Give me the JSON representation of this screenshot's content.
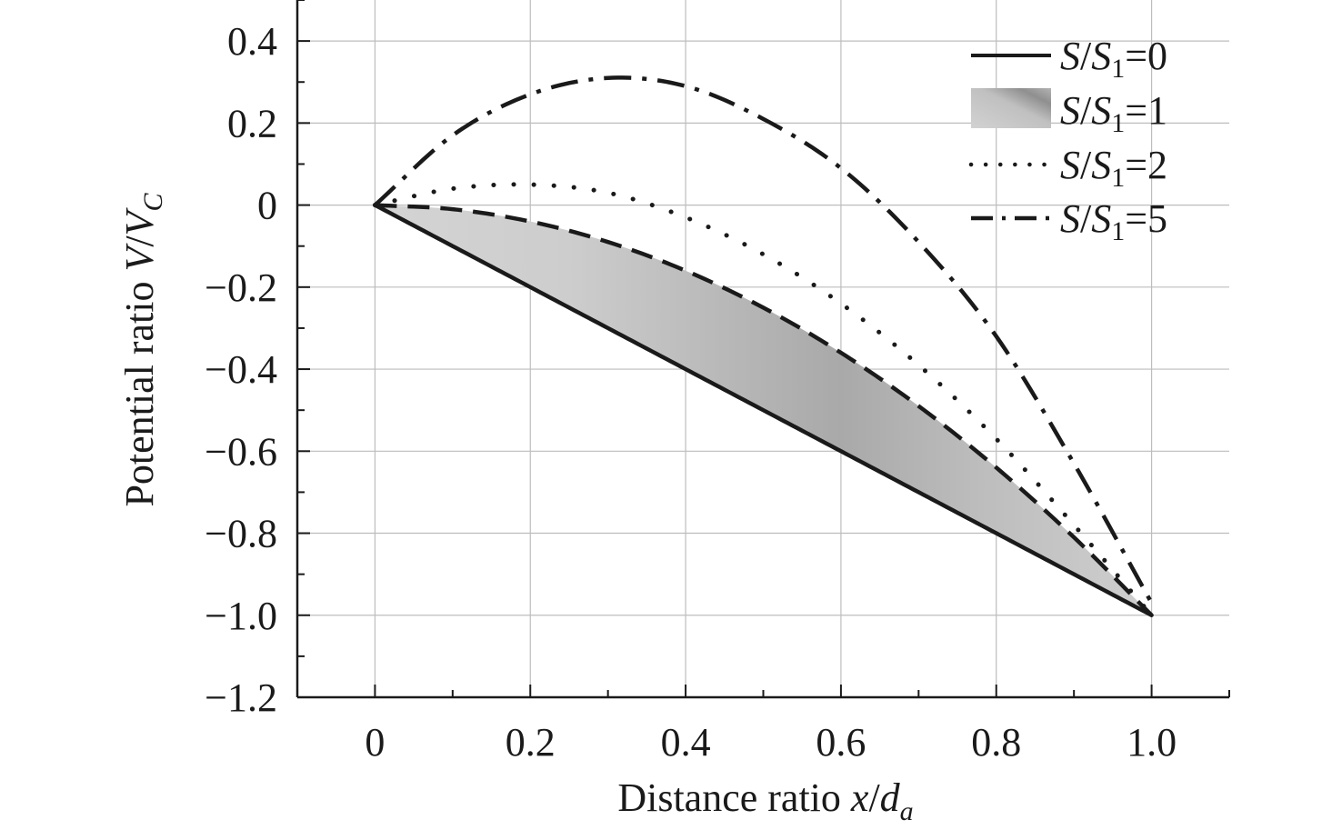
{
  "chart_data": {
    "type": "line",
    "xlabel": {
      "prefix": "Distance ratio ",
      "var": "x",
      "slash": "/",
      "var2": "d",
      "sub": "a"
    },
    "ylabel": {
      "prefix": "Potential ratio ",
      "var": "V",
      "slash": "/",
      "var2": "V",
      "sub": "C"
    },
    "xlim": [
      -0.1,
      1.1
    ],
    "ylim": [
      -1.2,
      0.5
    ],
    "xticks": [
      0,
      0.2,
      0.4,
      0.6,
      0.8,
      1.0
    ],
    "xtick_labels": [
      "0",
      "0.2",
      "0.4",
      "0.6",
      "0.8",
      "1.0"
    ],
    "yticks": [
      0.4,
      0.2,
      0,
      -0.2,
      -0.4,
      -0.6,
      -0.8,
      -1.0,
      -1.2
    ],
    "ytick_labels": [
      "0.4",
      "0.2",
      "0",
      "−0.2",
      "−0.4",
      "−0.6",
      "−0.8",
      "−1.0",
      "−1.2"
    ],
    "grid": true,
    "legend_position": "top-right",
    "colors": {
      "line": "#1a1a1a",
      "fill_light": "#d0d0d0",
      "fill_dark": "#a6a6a6",
      "grid": "#bdbdbd"
    },
    "series": [
      {
        "key": "s0",
        "name": {
          "var": "S",
          "slash": "/",
          "var2": "S",
          "sub": "1",
          "rest": "=0"
        },
        "style": "solid",
        "x": [
          0,
          0.1,
          0.2,
          0.3,
          0.4,
          0.5,
          0.6,
          0.7,
          0.8,
          0.9,
          1.0
        ],
        "y": [
          0,
          -0.1,
          -0.2,
          -0.3,
          -0.4,
          -0.5,
          -0.6,
          -0.7,
          -0.8,
          -0.9,
          -1.0
        ]
      },
      {
        "key": "s1",
        "name": {
          "var": "S",
          "slash": "/",
          "var2": "S",
          "sub": "1",
          "rest": "=1"
        },
        "style": "shaded",
        "x": [
          0,
          0.1,
          0.2,
          0.3,
          0.4,
          0.5,
          0.6,
          0.7,
          0.8,
          0.9,
          1.0
        ],
        "y": [
          0,
          -0.01,
          -0.04,
          -0.09,
          -0.16,
          -0.25,
          -0.36,
          -0.49,
          -0.64,
          -0.81,
          -1.0
        ]
      },
      {
        "key": "s2",
        "name": {
          "var": "S",
          "slash": "/",
          "var2": "S",
          "sub": "1",
          "rest": "=2"
        },
        "style": "dotted",
        "x": [
          0,
          0.1,
          0.2,
          0.3,
          0.4,
          0.5,
          0.6,
          0.7,
          0.8,
          0.9,
          1.0
        ],
        "y": [
          0,
          0.04,
          0.05,
          0.03,
          -0.03,
          -0.12,
          -0.24,
          -0.39,
          -0.57,
          -0.78,
          -1.0
        ]
      },
      {
        "key": "s5",
        "name": {
          "var": "S",
          "slash": "/",
          "var2": "S",
          "sub": "1",
          "rest": "=5"
        },
        "style": "dashdot",
        "x": [
          0,
          0.1,
          0.2,
          0.3,
          0.4,
          0.5,
          0.6,
          0.7,
          0.8,
          0.9,
          1.0
        ],
        "y": [
          0,
          0.17,
          0.27,
          0.31,
          0.29,
          0.21,
          0.09,
          -0.09,
          -0.32,
          -0.63,
          -0.97
        ]
      },
      {
        "key": "s1_dashed",
        "style": "dashed",
        "x": [
          0,
          0.1,
          0.2,
          0.3,
          0.4,
          0.5,
          0.6,
          0.7,
          0.8,
          0.9,
          1.0
        ],
        "y": [
          0,
          -0.01,
          -0.04,
          -0.09,
          -0.16,
          -0.25,
          -0.36,
          -0.49,
          -0.64,
          -0.81,
          -1.0
        ]
      }
    ]
  }
}
